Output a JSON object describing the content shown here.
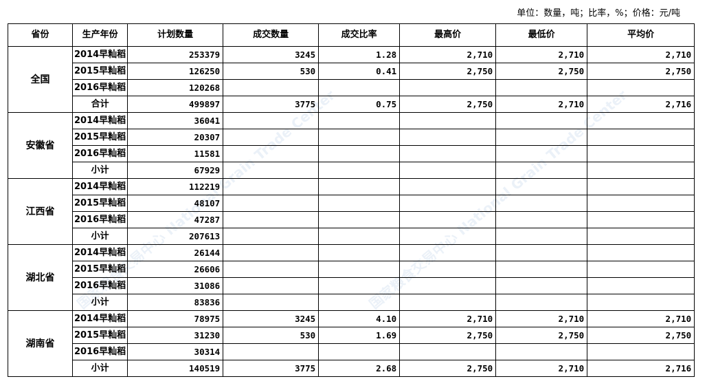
{
  "unit_note": "单位：数量，吨；比率，%；价格：元/吨",
  "watermark": "国家粮食交易中心 National Grain Trade Center",
  "headers": [
    "省份",
    "生产年份",
    "计划数量",
    "成交数量",
    "成交比率",
    "最高价",
    "最低价",
    "平均价"
  ],
  "groups": [
    {
      "province": "全国",
      "rows": [
        [
          "2014早籼稻",
          "253379",
          "3245",
          "1.28",
          "2,710",
          "2,710",
          "2,710"
        ],
        [
          "2015早籼稻",
          "126250",
          "530",
          "0.41",
          "2,750",
          "2,750",
          "2,750"
        ],
        [
          "2016早籼稻",
          "120268",
          "",
          "",
          "",
          "",
          ""
        ],
        [
          "合计",
          "499897",
          "3775",
          "0.75",
          "2,750",
          "2,710",
          "2,716"
        ]
      ]
    },
    {
      "province": "安徽省",
      "rows": [
        [
          "2014早籼稻",
          "36041",
          "",
          "",
          "",
          "",
          ""
        ],
        [
          "2015早籼稻",
          "20307",
          "",
          "",
          "",
          "",
          ""
        ],
        [
          "2016早籼稻",
          "11581",
          "",
          "",
          "",
          "",
          ""
        ],
        [
          "小计",
          "67929",
          "",
          "",
          "",
          "",
          ""
        ]
      ]
    },
    {
      "province": "江西省",
      "rows": [
        [
          "2014早籼稻",
          "112219",
          "",
          "",
          "",
          "",
          ""
        ],
        [
          "2015早籼稻",
          "48107",
          "",
          "",
          "",
          "",
          ""
        ],
        [
          "2016早籼稻",
          "47287",
          "",
          "",
          "",
          "",
          ""
        ],
        [
          "小计",
          "207613",
          "",
          "",
          "",
          "",
          ""
        ]
      ]
    },
    {
      "province": "湖北省",
      "rows": [
        [
          "2014早籼稻",
          "26144",
          "",
          "",
          "",
          "",
          ""
        ],
        [
          "2015早籼稻",
          "26606",
          "",
          "",
          "",
          "",
          ""
        ],
        [
          "2016早籼稻",
          "31086",
          "",
          "",
          "",
          "",
          ""
        ],
        [
          "小计",
          "83836",
          "",
          "",
          "",
          "",
          ""
        ]
      ]
    },
    {
      "province": "湖南省",
      "rows": [
        [
          "2014早籼稻",
          "78975",
          "3245",
          "4.10",
          "2,710",
          "2,710",
          "2,710"
        ],
        [
          "2015早籼稻",
          "31230",
          "530",
          "1.69",
          "2,750",
          "2,750",
          "2,750"
        ],
        [
          "2016早籼稻",
          "30314",
          "",
          "",
          "",
          "",
          ""
        ],
        [
          "小计",
          "140519",
          "3775",
          "2.68",
          "2,750",
          "2,710",
          "2,716"
        ]
      ]
    }
  ]
}
